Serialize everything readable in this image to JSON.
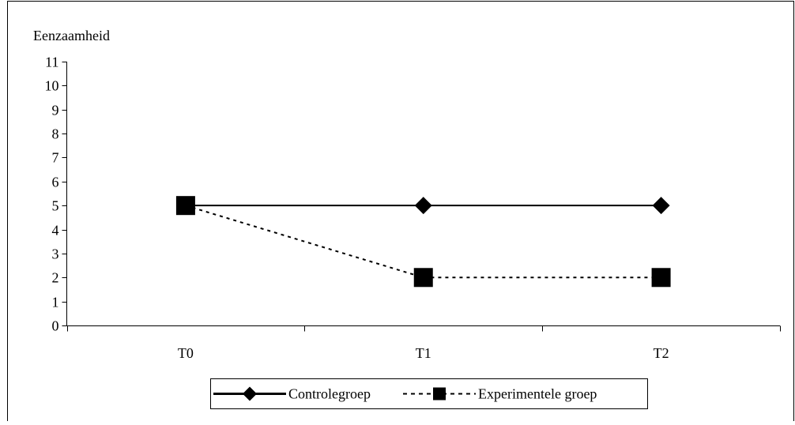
{
  "chart_data": {
    "type": "line",
    "ylabel": "Eenzaamheid",
    "xlabel": "",
    "categories": [
      "T0",
      "T1",
      "T2"
    ],
    "ylim": [
      0,
      11
    ],
    "yticks": [
      "0",
      "1",
      "2",
      "3",
      "4",
      "5",
      "6",
      "7",
      "8",
      "9",
      "10",
      "11"
    ],
    "grid": false,
    "legend_position": "bottom",
    "series": [
      {
        "name": "Controlegroep",
        "values": [
          5,
          5,
          5
        ],
        "marker": "diamond",
        "line_style": "solid",
        "color": "#000000"
      },
      {
        "name": "Experimentele groep",
        "values": [
          5,
          2,
          2
        ],
        "marker": "square",
        "line_style": "dotted",
        "color": "#000000"
      }
    ]
  }
}
